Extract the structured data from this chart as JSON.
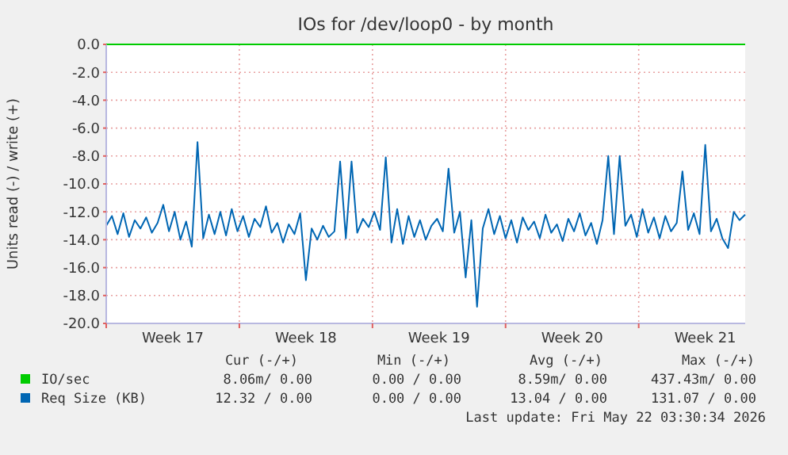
{
  "chart_data": {
    "type": "line",
    "title": "IOs for /dev/loop0 - by month",
    "ylabel": "Units read (-) / write (+)",
    "xlim": [
      "2026-04-20T00:00",
      "2026-05-23T14:24"
    ],
    "ylim": [
      -20,
      0
    ],
    "xticks": [
      {
        "value": "2026-04-20",
        "label": null
      },
      {
        "value": "2026-04-23T12:00",
        "label": "Week 17"
      },
      {
        "value": "2026-04-27",
        "label": null
      },
      {
        "value": "2026-04-30T12:00",
        "label": "Week 18"
      },
      {
        "value": "2026-05-04",
        "label": null
      },
      {
        "value": "2026-05-07T12:00",
        "label": "Week 19"
      },
      {
        "value": "2026-05-11",
        "label": null
      },
      {
        "value": "2026-05-14T12:00",
        "label": "Week 20"
      },
      {
        "value": "2026-05-18",
        "label": null
      },
      {
        "value": "2026-05-21T12:00",
        "label": "Week 21"
      }
    ],
    "yticks": [
      {
        "value": 0,
        "label": "0.0"
      },
      {
        "value": -2,
        "label": "-2.0"
      },
      {
        "value": -4,
        "label": "-4.0"
      },
      {
        "value": -6,
        "label": "-6.0"
      },
      {
        "value": -8,
        "label": "-8.0"
      },
      {
        "value": -10,
        "label": "-10.0"
      },
      {
        "value": -12,
        "label": "-12.0"
      },
      {
        "value": -14,
        "label": "-14.0"
      },
      {
        "value": -16,
        "label": "-16.0"
      },
      {
        "value": -18,
        "label": "-18.0"
      },
      {
        "value": -20,
        "label": "-20.0"
      }
    ],
    "grid": true,
    "legend": "bottom left",
    "series": [
      {
        "name": "IO/sec",
        "color": "#00cc00",
        "x": [
          "2026-04-20T00:00",
          "2026-05-23T14:24"
        ],
        "values": [
          0,
          0
        ]
      },
      {
        "name": "Req Size (KB)",
        "color": "#0066b3",
        "x": [
          "2026-04-20T00:00",
          "2026-04-20T07:12",
          "2026-04-20T14:24",
          "2026-04-20T21:36",
          "2026-04-21T04:48",
          "2026-04-21T12:00",
          "2026-04-21T19:12",
          "2026-04-22T02:24",
          "2026-04-22T09:36",
          "2026-04-22T16:48",
          "2026-04-23T00:00",
          "2026-04-23T07:12",
          "2026-04-23T14:24",
          "2026-04-23T21:36",
          "2026-04-24T04:48",
          "2026-04-24T12:00",
          "2026-04-24T19:12",
          "2026-04-25T02:24",
          "2026-04-25T09:36",
          "2026-04-25T16:48",
          "2026-04-26T00:00",
          "2026-04-26T07:12",
          "2026-04-26T14:24",
          "2026-04-26T21:36",
          "2026-04-27T04:48",
          "2026-04-27T12:00",
          "2026-04-27T19:12",
          "2026-04-28T02:24",
          "2026-04-28T09:36",
          "2026-04-28T16:48",
          "2026-04-29T00:00",
          "2026-04-29T07:12",
          "2026-04-29T14:24",
          "2026-04-29T21:36",
          "2026-04-30T04:48",
          "2026-04-30T12:00",
          "2026-04-30T19:12",
          "2026-05-01T02:24",
          "2026-05-01T09:36",
          "2026-05-01T16:48",
          "2026-05-02T00:00",
          "2026-05-02T07:12",
          "2026-05-02T14:24",
          "2026-05-02T21:36",
          "2026-05-03T04:48",
          "2026-05-03T12:00",
          "2026-05-03T19:12",
          "2026-05-04T02:24",
          "2026-05-04T09:36",
          "2026-05-04T16:48",
          "2026-05-05T00:00",
          "2026-05-05T07:12",
          "2026-05-05T14:24",
          "2026-05-05T21:36",
          "2026-05-06T04:48",
          "2026-05-06T12:00",
          "2026-05-06T19:12",
          "2026-05-07T02:24",
          "2026-05-07T09:36",
          "2026-05-07T16:48",
          "2026-05-08T00:00",
          "2026-05-08T07:12",
          "2026-05-08T14:24",
          "2026-05-08T21:36",
          "2026-05-09T04:48",
          "2026-05-09T12:00",
          "2026-05-09T19:12",
          "2026-05-10T02:24",
          "2026-05-10T09:36",
          "2026-05-10T16:48",
          "2026-05-11T00:00",
          "2026-05-11T07:12",
          "2026-05-11T14:24",
          "2026-05-11T21:36",
          "2026-05-12T04:48",
          "2026-05-12T12:00",
          "2026-05-12T19:12",
          "2026-05-13T02:24",
          "2026-05-13T09:36",
          "2026-05-13T16:48",
          "2026-05-14T00:00",
          "2026-05-14T07:12",
          "2026-05-14T14:24",
          "2026-05-14T21:36",
          "2026-05-15T04:48",
          "2026-05-15T12:00",
          "2026-05-15T19:12",
          "2026-05-16T02:24",
          "2026-05-16T09:36",
          "2026-05-16T16:48",
          "2026-05-17T00:00",
          "2026-05-17T07:12",
          "2026-05-17T14:24",
          "2026-05-17T21:36",
          "2026-05-18T04:48",
          "2026-05-18T12:00",
          "2026-05-18T19:12",
          "2026-05-19T02:24",
          "2026-05-19T09:36",
          "2026-05-19T16:48",
          "2026-05-20T00:00",
          "2026-05-20T07:12",
          "2026-05-20T14:24",
          "2026-05-20T21:36",
          "2026-05-21T04:48",
          "2026-05-21T12:00",
          "2026-05-21T19:12",
          "2026-05-22T02:24",
          "2026-05-22T09:36",
          "2026-05-22T16:48",
          "2026-05-23T00:00",
          "2026-05-23T07:12",
          "2026-05-23T14:24"
        ],
        "values": [
          -13.0,
          -12.3,
          -13.6,
          -12.1,
          -13.8,
          -12.6,
          -13.2,
          -12.4,
          -13.5,
          -12.8,
          -11.5,
          -13.4,
          -12.0,
          -14.0,
          -12.7,
          -14.5,
          -7.0,
          -13.9,
          -12.2,
          -13.6,
          -12.0,
          -13.7,
          -11.8,
          -13.4,
          -12.3,
          -13.8,
          -12.5,
          -13.1,
          -11.6,
          -13.5,
          -12.8,
          -14.2,
          -12.9,
          -13.6,
          -12.1,
          -16.9,
          -13.2,
          -14.0,
          -13.0,
          -13.8,
          -13.4,
          -8.4,
          -13.9,
          -8.4,
          -13.5,
          -12.5,
          -13.1,
          -12.0,
          -13.3,
          -8.1,
          -14.2,
          -11.8,
          -14.3,
          -12.3,
          -13.8,
          -12.6,
          -14.0,
          -13.0,
          -12.5,
          -13.4,
          -8.9,
          -13.5,
          -12.0,
          -16.7,
          -12.6,
          -18.8,
          -13.2,
          -11.8,
          -13.6,
          -12.3,
          -13.9,
          -12.6,
          -14.2,
          -12.4,
          -13.3,
          -12.7,
          -13.9,
          -12.2,
          -13.5,
          -12.9,
          -14.1,
          -12.5,
          -13.4,
          -12.1,
          -13.7,
          -12.8,
          -14.3,
          -12.6,
          -8.0,
          -13.6,
          -8.0,
          -13.0,
          -12.2,
          -13.8,
          -11.8,
          -13.5,
          -12.4,
          -13.9,
          -12.3,
          -13.4,
          -12.8,
          -9.1,
          -13.3,
          -12.1,
          -13.6,
          -7.2,
          -13.4,
          -12.5,
          -13.9,
          -14.6,
          -12.0,
          -12.6,
          -12.2
        ]
      }
    ],
    "annotations": [
      "Cur (-/+)",
      "Min (-/+)",
      "Avg (-/+)",
      "Max (-/+)",
      "8.06m/ 0.00",
      "0.00 / 0.00",
      "8.59m/ 0.00",
      "437.43m/ 0.00",
      "12.32 / 0.00",
      "0.00 / 0.00",
      "13.04 / 0.00",
      "131.07 / 0.00",
      "Last update: Fri May 22 03:30:34 2026"
    ]
  }
}
